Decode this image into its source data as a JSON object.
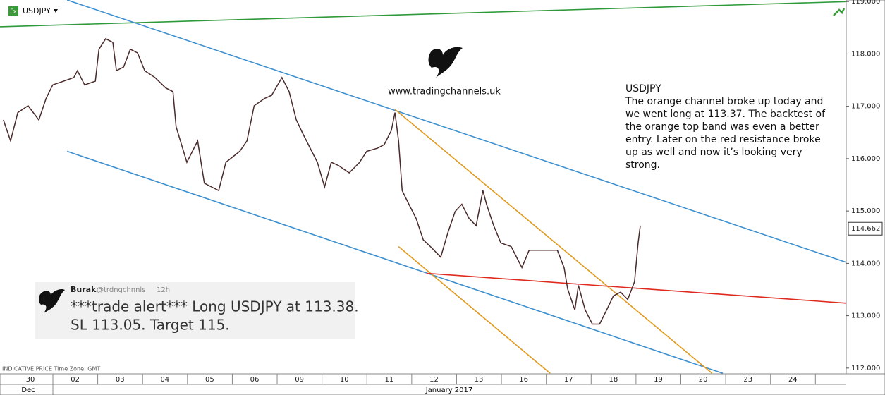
{
  "chart_data": {
    "type": "line",
    "symbol": "USDJPY",
    "footer": "INDICATIVE PRICE   Time Zone: GMT",
    "months": [
      "Dec",
      "January 2017"
    ],
    "last_price": {
      "value": 114.662,
      "label": "114.662"
    },
    "website": "www.tradingchannels.uk",
    "note": [
      "USDJPY",
      "The orange channel broke up today and",
      "we went long at 113.37. The backtest of",
      "the orange top band was even a better",
      "entry. Later on the red resistance broke",
      "up as well and now it’s looking very",
      "strong."
    ],
    "tweet": {
      "name": "Burak",
      "handle": "@trdngchnnls",
      "time": "12h",
      "text": [
        "***trade alert*** Long USDJPY at 113.38.",
        "SL 113.05. Target 115."
      ]
    },
    "xlim": [
      -0.676,
      18.19
    ],
    "ylim": [
      111.89,
      119.03
    ],
    "xticks": [
      {
        "value": 0,
        "label": "30"
      },
      {
        "value": 1,
        "label": "02"
      },
      {
        "value": 2,
        "label": "03"
      },
      {
        "value": 3,
        "label": "04"
      },
      {
        "value": 4,
        "label": "05"
      },
      {
        "value": 5,
        "label": "06"
      },
      {
        "value": 6,
        "label": "09"
      },
      {
        "value": 7,
        "label": "10"
      },
      {
        "value": 8,
        "label": "11"
      },
      {
        "value": 9,
        "label": "12"
      },
      {
        "value": 10,
        "label": "13"
      },
      {
        "value": 11,
        "label": "16"
      },
      {
        "value": 12,
        "label": "17"
      },
      {
        "value": 13,
        "label": "18"
      },
      {
        "value": 14,
        "label": "19"
      },
      {
        "value": 15,
        "label": "20"
      },
      {
        "value": 16,
        "label": "23"
      },
      {
        "value": 17,
        "label": "24"
      }
    ],
    "yticks": [
      {
        "value": 112,
        "label": "112.000"
      },
      {
        "value": 113,
        "label": "113.000"
      },
      {
        "value": 114,
        "label": "114.000"
      },
      {
        "value": 115,
        "label": "115.000"
      },
      {
        "value": 116,
        "label": "116.000"
      },
      {
        "value": 117,
        "label": "117.000"
      },
      {
        "value": 118,
        "label": "118.000"
      },
      {
        "value": 119,
        "label": "119.000"
      }
    ],
    "series": [
      {
        "color": "#4a2a2a",
        "x": [
          -0.6,
          -0.44,
          -0.28,
          -0.05,
          0.19,
          0.35,
          0.5,
          0.74,
          0.97,
          1.05,
          1.21,
          1.45,
          1.53,
          1.68,
          1.84,
          1.92,
          2.08,
          2.23,
          2.39,
          2.55,
          2.78,
          3.02,
          3.18,
          3.25,
          3.49,
          3.73,
          3.88,
          4.04,
          4.2,
          4.36,
          4.67,
          4.83,
          4.99,
          5.22,
          5.38,
          5.61,
          5.77,
          5.93,
          6.08,
          6.24,
          6.4,
          6.56,
          6.71,
          6.87,
          7.11,
          7.34,
          7.5,
          7.74,
          7.89,
          8.05,
          8.13,
          8.21,
          8.29,
          8.44,
          8.6,
          8.76,
          8.92,
          9.15,
          9.31,
          9.47,
          9.62,
          9.78,
          9.94,
          10.09,
          10.17,
          10.33,
          10.49,
          10.72,
          10.96,
          11.12,
          11.43,
          11.75,
          11.9,
          11.98,
          12.14,
          12.22,
          12.37,
          12.53,
          12.69,
          12.85,
          13.0,
          13.16,
          13.32,
          13.47,
          13.55,
          13.6
        ],
        "values": [
          116.74,
          116.34,
          116.88,
          117.01,
          116.74,
          117.15,
          117.41,
          117.48,
          117.55,
          117.68,
          117.41,
          117.48,
          118.09,
          118.29,
          118.22,
          117.68,
          117.75,
          118.09,
          118.02,
          117.68,
          117.55,
          117.35,
          117.28,
          116.61,
          115.93,
          116.34,
          115.53,
          115.46,
          115.39,
          115.93,
          116.14,
          116.34,
          117.01,
          117.15,
          117.21,
          117.55,
          117.28,
          116.74,
          116.47,
          116.2,
          115.93,
          115.46,
          115.93,
          115.87,
          115.73,
          115.93,
          116.14,
          116.2,
          116.27,
          116.54,
          116.88,
          116.34,
          115.39,
          115.13,
          114.86,
          114.45,
          114.32,
          114.12,
          114.59,
          114.99,
          115.13,
          114.86,
          114.72,
          115.39,
          115.13,
          114.72,
          114.39,
          114.32,
          113.92,
          114.25,
          114.25,
          114.25,
          113.92,
          113.51,
          113.11,
          113.58,
          113.11,
          112.84,
          112.84,
          113.11,
          113.38,
          113.45,
          113.31,
          113.65,
          114.39,
          114.72
        ]
      }
    ],
    "lines": [
      {
        "color": "#2e9a3a",
        "x": [
          -0.68,
          18.19
        ],
        "values": [
          118.52,
          118.999
        ]
      },
      {
        "color": "#3c8fce",
        "x": [
          0.82,
          18.19
        ],
        "values": [
          119.03,
          114.02
        ]
      },
      {
        "color": "#3c8fce",
        "x": [
          0.82,
          15.44
        ],
        "values": [
          116.14,
          111.9
        ]
      },
      {
        "color": "#e09a1e",
        "x": [
          8.13,
          15.2
        ],
        "values": [
          116.94,
          111.9
        ]
      },
      {
        "color": "#e09a1e",
        "x": [
          8.21,
          11.59
        ],
        "values": [
          114.32,
          111.9
        ]
      },
      {
        "color": "#e02a1e",
        "x": [
          8.84,
          18.19
        ],
        "values": [
          113.81,
          113.24
        ]
      }
    ]
  }
}
